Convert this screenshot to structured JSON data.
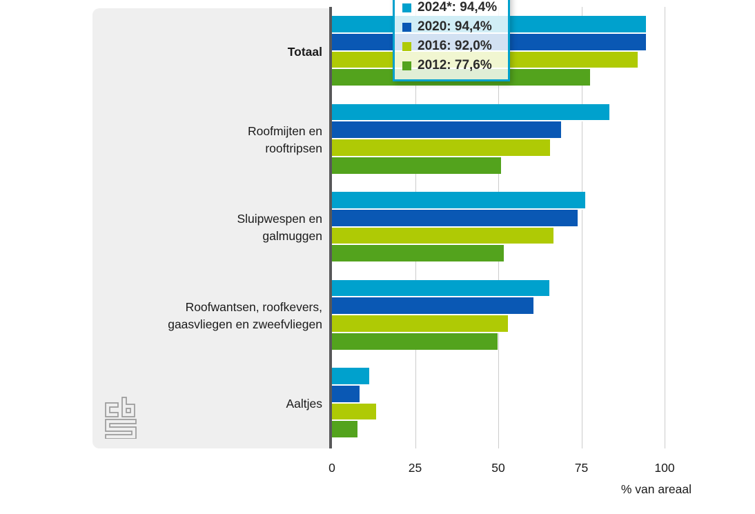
{
  "chart_data": {
    "type": "bar",
    "orientation": "horizontal",
    "xlabel": "% van areaal",
    "xticks": [
      0,
      25,
      50,
      75,
      100
    ],
    "xlim": [
      0,
      100
    ],
    "grid": "vertical",
    "legend_position": "tooltip-overlay",
    "categories": [
      {
        "label": "Totaal",
        "lines": [
          "Totaal"
        ],
        "bold": true
      },
      {
        "label": "Roofmijten en rooftripsen",
        "lines": [
          "Roofmijten en",
          "rooftripsen"
        ],
        "bold": false
      },
      {
        "label": "Sluipwespen en galmuggen",
        "lines": [
          "Sluipwespen en",
          "galmuggen"
        ],
        "bold": false
      },
      {
        "label": "Roofwantsen, roofkevers, gaasvliegen en zweefvliegen",
        "lines": [
          "Roofwantsen, roofkevers,",
          "gaasvliegen en zweefvliegen"
        ],
        "bold": false
      },
      {
        "label": "Aaltjes",
        "lines": [
          "Aaltjes"
        ],
        "bold": false
      }
    ],
    "series": [
      {
        "name": "2024*",
        "color": "#00a1cd",
        "values": [
          94.4,
          83.4,
          76.1,
          65.3,
          11.3
        ]
      },
      {
        "name": "2020",
        "color": "#0a58b4",
        "values": [
          94.4,
          68.9,
          73.9,
          60.5,
          8.2
        ]
      },
      {
        "name": "2016",
        "color": "#afca05",
        "values": [
          92.0,
          65.6,
          66.7,
          53.0,
          13.3
        ]
      },
      {
        "name": "2012",
        "color": "#53a31d",
        "values": [
          77.6,
          50.8,
          51.7,
          49.8,
          7.6
        ]
      }
    ]
  },
  "tooltip": {
    "category": "Totaal",
    "rows": [
      {
        "swatch": "#00a1cd",
        "text": "2024*: 94,4%"
      },
      {
        "swatch": "#0a58b4",
        "text": "2020: 94,4%"
      },
      {
        "swatch": "#afca05",
        "text": "2016: 92,0%"
      },
      {
        "swatch": "#53a31d",
        "text": "2012: 77,6%"
      }
    ]
  },
  "branding": {
    "logo": "cbs"
  },
  "colors": {
    "panel": "#efefef",
    "axis_line": "#58585a",
    "gridline": "#cccccc",
    "tooltip_border": "#00a1cd",
    "logo_gray": "#9b9b9b"
  }
}
